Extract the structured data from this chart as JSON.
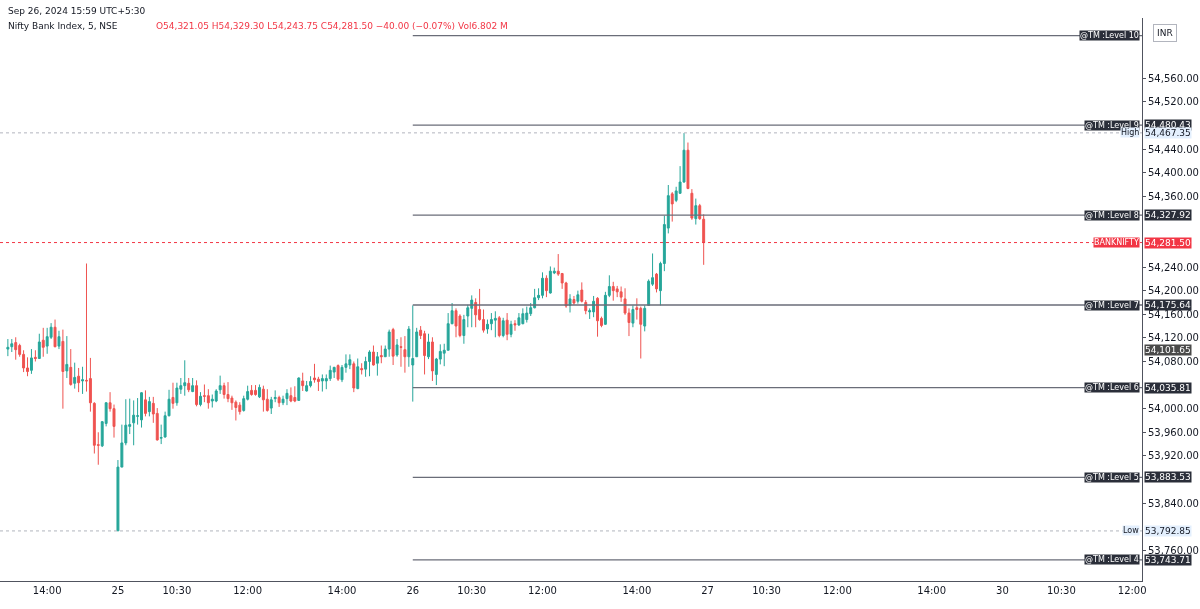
{
  "chart_data": {
    "type": "candlestick",
    "title": "Nifty Bank Index, 5, NSE",
    "subtitle": "O54,321.05 H54,329.30 L54,243.75 C54,281.50 −40.00 (−0.07%) Vol6.802 M",
    "annotations": [
      "Sep 26, 2024 15:59 UTC+5:30",
      "INR",
      "54,101.65",
      "54,480.43",
      "54,327.92",
      "54,175.64",
      "54,035.81",
      "53,883.53",
      "53,743.71",
      "54,467.35",
      "53,792.85",
      "54,281.50"
    ],
    "categories": [
      null,
      null,
      null,
      null,
      null,
      null,
      null,
      null,
      null,
      null,
      "14:00",
      null,
      null,
      null,
      null,
      null,
      null,
      null,
      null,
      null,
      null,
      null,
      null,
      null,
      null,
      null,
      null,
      null,
      "25",
      null,
      null,
      null,
      null,
      null,
      null,
      null,
      null,
      null,
      null,
      null,
      null,
      null,
      null,
      "10:30",
      null,
      null,
      null,
      null,
      null,
      null,
      null,
      null,
      null,
      null,
      null,
      null,
      null,
      null,
      null,
      null,
      null,
      "12:00",
      null,
      null,
      null,
      null,
      null,
      null,
      null,
      null,
      null,
      null,
      null,
      null,
      null,
      null,
      null,
      null,
      null,
      null,
      null,
      null,
      null,
      null,
      null,
      "14:00",
      null,
      null,
      null,
      null,
      null,
      null,
      null,
      null,
      null,
      null,
      null,
      null,
      null,
      null,
      null,
      null,
      null,
      "26",
      null,
      null,
      null,
      null,
      null,
      null,
      null,
      null,
      null,
      null,
      null,
      null,
      null,
      null,
      "10:30",
      null,
      null,
      null,
      null,
      null,
      null,
      null,
      null,
      null,
      null,
      null,
      null,
      null,
      null,
      null,
      null,
      null,
      "12:00",
      null,
      null,
      null,
      null,
      null,
      null,
      null,
      null,
      null,
      null,
      null,
      null,
      null,
      null,
      null,
      null,
      null,
      null,
      null,
      null,
      null,
      null,
      null,
      "14:00",
      null,
      null,
      null,
      null,
      null,
      null,
      null,
      null,
      null,
      null,
      null,
      null,
      null,
      null,
      null,
      null,
      null,
      "27",
      null,
      null,
      null,
      null,
      null,
      null,
      null,
      null,
      null,
      null,
      null,
      null,
      null,
      null,
      "10:30",
      null,
      null,
      null,
      null,
      null,
      null,
      null,
      null,
      null,
      null,
      null,
      null,
      null,
      null,
      null,
      null,
      null,
      "12:00",
      null,
      null,
      null,
      null,
      null,
      null,
      null,
      null,
      null,
      null,
      null,
      null,
      null,
      null,
      null,
      null,
      null,
      null,
      null,
      null,
      null,
      null,
      null,
      "14:00",
      null,
      null,
      null,
      null,
      null,
      null,
      null,
      null,
      null,
      null,
      null,
      null,
      null,
      null,
      null,
      null,
      null,
      "30",
      null,
      null,
      null,
      null,
      null,
      null,
      null,
      null,
      null,
      null,
      null,
      null,
      null,
      null,
      "10:30",
      null,
      null,
      null,
      null,
      null,
      null,
      null,
      null,
      null,
      null,
      null,
      null,
      null,
      null,
      null,
      null,
      null,
      "12:00",
      null,
      null
    ],
    "ohlc": [
      [
        54101,
        54118,
        54089,
        54104
      ],
      [
        54105,
        54118,
        54096,
        54110
      ],
      [
        54112,
        54121,
        54083,
        54100
      ],
      [
        54107,
        54110,
        54088,
        54092
      ],
      [
        54092,
        54099,
        54062,
        54069
      ],
      [
        54069,
        54087,
        54055,
        54063
      ],
      [
        54065,
        54101,
        54059,
        54086
      ],
      [
        54087,
        54099,
        54080,
        54085
      ],
      [
        54085,
        54127,
        54085,
        54113
      ],
      [
        54116,
        54137,
        54088,
        54104
      ],
      [
        54106,
        54137,
        54093,
        54122
      ],
      [
        54121,
        54145,
        54118,
        54138
      ],
      [
        54138,
        54151,
        54104,
        54105
      ],
      [
        54106,
        54132,
        54101,
        54122
      ],
      [
        54114,
        54134,
        54000,
        54063
      ],
      [
        54064,
        54123,
        54052,
        54075
      ],
      [
        54070,
        54101,
        54039,
        54041
      ],
      [
        54043,
        54078,
        54034,
        54053
      ],
      [
        54055,
        54069,
        54028,
        54044
      ],
      [
        54047,
        54071,
        54025,
        54049
      ],
      [
        54048,
        54246,
        54029,
        54047
      ],
      [
        54051,
        54086,
        53995,
        54010
      ],
      [
        54009,
        54011,
        53924,
        53938
      ],
      [
        53939,
        53960,
        53905,
        53938
      ],
      [
        53937,
        53979,
        53935,
        53978
      ],
      [
        53975,
        54011,
        53970,
        54010
      ],
      [
        54010,
        54028,
        53995,
        54000
      ],
      [
        54000,
        54007,
        53951,
        53970
      ],
      [
        53793,
        53913,
        53793,
        53901
      ],
      [
        53901,
        53973,
        53901,
        53942
      ],
      [
        53942,
        54016,
        53938,
        53972
      ],
      [
        53970,
        54017,
        53957,
        53973
      ],
      [
        53976,
        54014,
        53938,
        53989
      ],
      [
        53987,
        54018,
        53973,
        53988
      ],
      [
        53981,
        54028,
        53968,
        54027
      ],
      [
        54015,
        54031,
        53987,
        53992
      ],
      [
        53995,
        54020,
        53987,
        54012
      ],
      [
        54009,
        54020,
        53976,
        53991
      ],
      [
        53992,
        54001,
        53946,
        53947
      ],
      [
        53950,
        53973,
        53940,
        53951
      ],
      [
        53952,
        53995,
        53951,
        53988
      ],
      [
        53988,
        54032,
        53987,
        54016
      ],
      [
        54019,
        54044,
        54000,
        54009
      ],
      [
        54010,
        54044,
        54005,
        54035
      ],
      [
        54033,
        54052,
        54025,
        54039
      ],
      [
        54039,
        54082,
        54022,
        54044
      ],
      [
        54043,
        54052,
        54028,
        54032
      ],
      [
        54029,
        54052,
        54028,
        54039
      ],
      [
        54039,
        54048,
        54004,
        54007
      ],
      [
        54007,
        54028,
        54004,
        54021
      ],
      [
        54022,
        54041,
        54011,
        54021
      ],
      [
        54022,
        54033,
        54000,
        54010
      ],
      [
        54013,
        54024,
        54002,
        54016
      ],
      [
        54013,
        54033,
        54011,
        54030
      ],
      [
        54032,
        54056,
        54025,
        54039
      ],
      [
        54039,
        54044,
        54017,
        54024
      ],
      [
        54024,
        54045,
        54011,
        54017
      ],
      [
        54018,
        54022,
        53998,
        54010
      ],
      [
        54011,
        54014,
        53980,
        54002
      ],
      [
        54006,
        54011,
        53990,
        53995
      ],
      [
        53997,
        54022,
        53995,
        54017
      ],
      [
        54016,
        54039,
        54014,
        54029
      ],
      [
        54031,
        54040,
        54022,
        54024
      ],
      [
        54031,
        54040,
        54022,
        54024
      ],
      [
        54020,
        54041,
        54018,
        54036
      ],
      [
        54033,
        54039,
        53995,
        54015
      ],
      [
        54016,
        54033,
        53995,
        53997
      ],
      [
        54001,
        54020,
        53991,
        54015
      ],
      [
        54017,
        54031,
        54011,
        54019
      ],
      [
        54019,
        54022,
        54003,
        54010
      ],
      [
        54010,
        54022,
        54006,
        54016
      ],
      [
        54017,
        54033,
        54006,
        54026
      ],
      [
        54022,
        54036,
        54011,
        54013
      ],
      [
        54019,
        54038,
        54011,
        54013
      ],
      [
        54014,
        54053,
        54014,
        54052
      ],
      [
        54047,
        54061,
        54030,
        54039
      ],
      [
        54030,
        54047,
        54029,
        54039
      ],
      [
        54039,
        54055,
        54036,
        54046
      ],
      [
        54052,
        54076,
        54044,
        54049
      ],
      [
        54050,
        54054,
        54030,
        54046
      ],
      [
        54047,
        54058,
        54029,
        54051
      ],
      [
        54047,
        54058,
        54033,
        54051
      ],
      [
        54051,
        54073,
        54047,
        54065
      ],
      [
        54062,
        54071,
        54052,
        54070
      ],
      [
        54073,
        54075,
        54047,
        54050
      ],
      [
        54049,
        54074,
        54045,
        54070
      ],
      [
        54070,
        54092,
        54061,
        54076
      ],
      [
        54074,
        54092,
        54067,
        54083
      ],
      [
        54076,
        54080,
        54028,
        54035
      ],
      [
        54034,
        54085,
        54033,
        54071
      ],
      [
        54068,
        54077,
        54058,
        54066
      ],
      [
        54067,
        54088,
        54054,
        54080
      ],
      [
        54080,
        54099,
        54055,
        54096
      ],
      [
        54096,
        54107,
        54073,
        54074
      ],
      [
        54077,
        54096,
        54056,
        54088
      ],
      [
        54090,
        54107,
        54077,
        54088
      ],
      [
        54088,
        54107,
        54088,
        54101
      ],
      [
        54101,
        54134,
        54088,
        54130
      ],
      [
        54134,
        54137,
        54074,
        54089
      ],
      [
        54091,
        54118,
        54088,
        54108
      ],
      [
        54105,
        54121,
        54071,
        54104
      ],
      [
        54100,
        54123,
        54061,
        54088
      ],
      [
        54088,
        54140,
        54071,
        54135
      ],
      [
        54074,
        54175,
        54012,
        54085
      ],
      [
        54088,
        54137,
        54088,
        54130
      ],
      [
        54133,
        54140,
        54118,
        54124
      ],
      [
        54127,
        54132,
        54058,
        54090
      ],
      [
        54088,
        54127,
        54084,
        54113
      ],
      [
        54113,
        54121,
        54047,
        54064
      ],
      [
        54058,
        54086,
        54040,
        54084
      ],
      [
        54084,
        54109,
        54075,
        54097
      ],
      [
        54094,
        54110,
        54072,
        54099
      ],
      [
        54099,
        54162,
        54099,
        54144
      ],
      [
        54144,
        54179,
        54143,
        54166
      ],
      [
        54166,
        54170,
        54121,
        54140
      ],
      [
        54157,
        54160,
        54121,
        54124
      ],
      [
        54124,
        54159,
        54110,
        54151
      ],
      [
        54157,
        54176,
        54138,
        54171
      ],
      [
        54170,
        54192,
        54138,
        54184
      ],
      [
        54180,
        54187,
        54138,
        54159
      ],
      [
        54168,
        54203,
        54149,
        54151
      ],
      [
        54151,
        54168,
        54129,
        54133
      ],
      [
        54135,
        54151,
        54127,
        54143
      ],
      [
        54144,
        54162,
        54133,
        54151
      ],
      [
        54150,
        54165,
        54121,
        54153
      ],
      [
        54154,
        54157,
        54121,
        54124
      ],
      [
        54124,
        54154,
        54121,
        54149
      ],
      [
        54150,
        54162,
        54116,
        54126
      ],
      [
        54126,
        54149,
        54121,
        54143
      ],
      [
        54144,
        54150,
        54132,
        54142
      ],
      [
        54142,
        54162,
        54140,
        54154
      ],
      [
        54144,
        54170,
        54143,
        54161
      ],
      [
        54151,
        54173,
        54146,
        54162
      ],
      [
        54161,
        54179,
        54157,
        54171
      ],
      [
        54171,
        54203,
        54170,
        54188
      ],
      [
        54188,
        54204,
        54184,
        54192
      ],
      [
        54192,
        54231,
        54187,
        54221
      ],
      [
        54221,
        54226,
        54189,
        54200
      ],
      [
        54196,
        54241,
        54195,
        54233
      ],
      [
        54230,
        54239,
        54228,
        54233
      ],
      [
        54233,
        54262,
        54225,
        54228
      ],
      [
        54229,
        54230,
        54203,
        54213
      ],
      [
        54213,
        54215,
        54171,
        54174
      ],
      [
        54175,
        54194,
        54163,
        54186
      ],
      [
        54185,
        54191,
        54176,
        54179
      ],
      [
        54182,
        54200,
        54178,
        54193
      ],
      [
        54201,
        54214,
        54180,
        54182
      ],
      [
        54180,
        54184,
        54160,
        54166
      ],
      [
        54164,
        54170,
        54152,
        54166
      ],
      [
        54164,
        54191,
        54155,
        54182
      ],
      [
        54187,
        54189,
        54122,
        54149
      ],
      [
        54153,
        54156,
        54138,
        54141
      ],
      [
        54143,
        54198,
        54142,
        54192
      ],
      [
        54192,
        54226,
        54189,
        54207
      ],
      [
        54207,
        54215,
        54183,
        54200
      ],
      [
        54203,
        54208,
        54189,
        54198
      ],
      [
        54198,
        54207,
        54181,
        54189
      ],
      [
        54186,
        54204,
        54159,
        54162
      ],
      [
        54162,
        54170,
        54123,
        54146
      ],
      [
        54145,
        54175,
        54138,
        54168
      ],
      [
        54171,
        54187,
        54151,
        54168
      ],
      [
        54170,
        54173,
        54085,
        54143
      ],
      [
        54140,
        54175,
        54131,
        54170
      ],
      [
        54175,
        54219,
        54174,
        54216
      ],
      [
        54211,
        54263,
        54208,
        54222
      ],
      [
        54228,
        54230,
        54197,
        54203
      ],
      [
        54200,
        54249,
        54175,
        54246
      ],
      [
        54246,
        54327,
        54233,
        54312
      ],
      [
        54306,
        54379,
        54297,
        54361
      ],
      [
        54364,
        54367,
        54317,
        54347
      ],
      [
        54353,
        54376,
        54350,
        54369
      ],
      [
        54365,
        54411,
        54364,
        54384
      ],
      [
        54384,
        54467,
        54383,
        54438
      ],
      [
        54438,
        54451,
        54372,
        54373
      ],
      [
        54365,
        54372,
        54320,
        54323
      ],
      [
        54322,
        54356,
        54312,
        54344
      ],
      [
        54344,
        54347,
        54320,
        54322
      ],
      [
        54321.05,
        54329.3,
        54243.75,
        54281.5
      ],
      null,
      null,
      null,
      null,
      null,
      null,
      null,
      null,
      null,
      null,
      null,
      null,
      null,
      null,
      null,
      null,
      null,
      null,
      null,
      null,
      null,
      null,
      null,
      null,
      null,
      null,
      null,
      null,
      null,
      null,
      null,
      null,
      null,
      null,
      null,
      null,
      null,
      null,
      null,
      null,
      null,
      null,
      null,
      null,
      null,
      null,
      null,
      null,
      null,
      null,
      null,
      null,
      null,
      null,
      null,
      null,
      null,
      null,
      null,
      null,
      null,
      null,
      null,
      null,
      null,
      null,
      null,
      null,
      null,
      null,
      null,
      null,
      null,
      null,
      null,
      null,
      null,
      null,
      null,
      null,
      null,
      null,
      null,
      null,
      null,
      null,
      null,
      null,
      null,
      null,
      null,
      null,
      null,
      null,
      null,
      null,
      null,
      null,
      null,
      null,
      null,
      null,
      null,
      null,
      null,
      null,
      null,
      null,
      null,
      null,
      null
    ],
    "ylim": [
      53708,
      54662
    ],
    "yticks": [
      {
        "value": 53760,
        "label": "53,760.00"
      },
      {
        "value": 53840,
        "label": "53,840.00"
      },
      {
        "value": 53920,
        "label": "53,920.00"
      },
      {
        "value": 53960,
        "label": "53,960.00"
      },
      {
        "value": 54000,
        "label": "54,000.00"
      },
      {
        "value": 54080,
        "label": "54,080.00"
      },
      {
        "value": 54120,
        "label": "54,120.00"
      },
      {
        "value": 54160,
        "label": "54,160.00"
      },
      {
        "value": 54200,
        "label": "54,200.00"
      },
      {
        "value": 54240,
        "label": "54,240.00"
      },
      {
        "value": 54360,
        "label": "54,360.00"
      },
      {
        "value": 54400,
        "label": "54,400.00"
      },
      {
        "value": 54440,
        "label": "54,440.00"
      },
      {
        "value": 54520,
        "label": "54,520.00"
      },
      {
        "value": 54560,
        "label": "54,560.00"
      }
    ],
    "ref_lines": [
      {
        "axis": "y",
        "value": 54632,
        "label": "@TM :Level 10",
        "color": "#6a6d78",
        "line_style": "solid"
      },
      {
        "axis": "y",
        "value": 54480.43,
        "label": "@TM :Level 9",
        "color": "#6a6d78",
        "line_style": "solid"
      },
      {
        "axis": "y",
        "value": 54327.92,
        "label": "@TM :Level 8",
        "color": "#6a6d78",
        "line_style": "solid"
      },
      {
        "axis": "y",
        "value": 54175.64,
        "label": "@TM :Level 7",
        "color": "#6a6d78",
        "line_style": "solid"
      },
      {
        "axis": "y",
        "value": 54035.81,
        "label": "@TM :Level 6",
        "color": "#6a6d78",
        "line_style": "solid"
      },
      {
        "axis": "y",
        "value": 53883.53,
        "label": "@TM :Level 5",
        "color": "#6a6d78",
        "line_style": "solid"
      },
      {
        "axis": "y",
        "value": 53743.71,
        "label": "@TM :Level 4",
        "color": "#6a6d78",
        "line_style": "solid"
      },
      {
        "axis": "y",
        "value": 54467.35,
        "label": "High",
        "color": "#b2b5be",
        "line_style": "dotted"
      },
      {
        "axis": "y",
        "value": 53792.85,
        "label": "Low",
        "color": "#b2b5be",
        "line_style": "dotted"
      },
      {
        "axis": "y",
        "value": 54281.5,
        "label": "BANKNIFTY",
        "color": "#f23645",
        "line_style": "dotted"
      }
    ],
    "grid": false
  }
}
